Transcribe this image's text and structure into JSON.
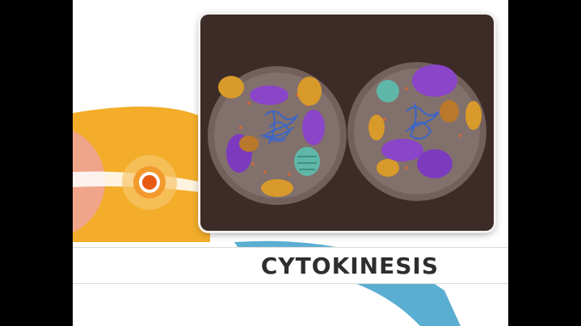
{
  "caption": {
    "label": "CYTOKINESIS"
  },
  "colors": {
    "letterbox": "#000000",
    "panel_bg": "#3d2b27",
    "cell_membrane": "#7c6a66",
    "mitochondria": "#d89a2a",
    "golgi": "#8a45c9",
    "er": "#d06a3a",
    "chromatin": "#3a66c8",
    "lysosome_green": "#5fb7a7",
    "timeline_orange": "#f3ad2a",
    "timeline_pink": "#f0a58a",
    "timeline_blue": "#5aaed2",
    "marker": "#e85a12"
  },
  "icons": {
    "timeline_marker": "stage-marker-icon"
  }
}
